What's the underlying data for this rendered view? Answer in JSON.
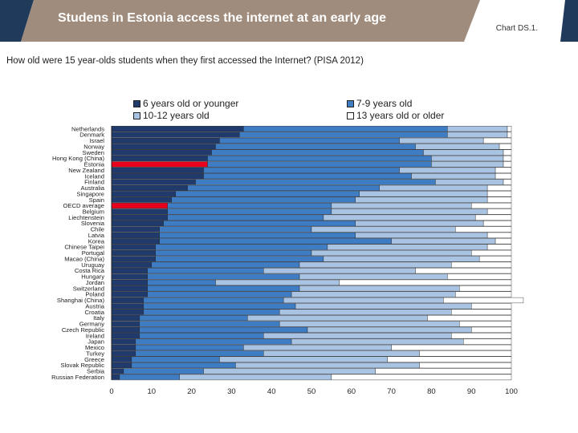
{
  "header": {
    "title": "Studens in Estonia access the internet at an early age",
    "chart_id": "Chart DS.1.",
    "banner_color": "#a08c7d",
    "banner_dark": "#1f3a5a"
  },
  "chart_data": {
    "type": "bar",
    "orientation": "horizontal",
    "stacked": true,
    "title": "How old were 15 year-olds students when they first accessed the Internet? (PISA 2012)",
    "xlim": [
      0,
      100
    ],
    "xticks": [
      "0",
      "10",
      "20",
      "30",
      "40",
      "50",
      "60",
      "70",
      "80",
      "90",
      "100"
    ],
    "legend_placement": "top",
    "highlight_categories": [
      "Estonia",
      "OECD average"
    ],
    "highlight_color": "#e8001c",
    "categories": [
      "Netherlands",
      "Denmark",
      "Israel",
      "Norway",
      "Sweden",
      "Hong Kong (China)",
      "Estonia",
      "New Zealand",
      "Iceland",
      "Finland",
      "Australia",
      "Singapore",
      "Spain",
      "OECD average",
      "Belgium",
      "Liechtenstein",
      "Slovenia",
      "Chile",
      "Latvia",
      "Korea",
      "Chinese Taipei",
      "Portugal",
      "Macao (China)",
      "Uruguay",
      "Costa Rica",
      "Hungary",
      "Jordan",
      "Switzerland",
      "Poland",
      "Shanghai (China)",
      "Austria",
      "Croatia",
      "Italy",
      "Germany",
      "Czech Republic",
      "Ireland",
      "Japan",
      "Mexico",
      "Turkey",
      "Greece",
      "Slovak Republic",
      "Serbia",
      "Russian Federation"
    ],
    "series": [
      {
        "name": "6 years old or younger",
        "color": "#1f3a6b",
        "values": [
          33,
          32,
          27,
          26,
          25,
          24,
          24,
          23,
          23,
          21,
          19,
          16,
          15,
          14,
          14,
          14,
          13,
          12,
          12,
          12,
          11,
          11,
          11,
          10,
          9,
          9,
          9,
          9,
          9,
          8,
          8,
          8,
          7,
          7,
          7,
          7,
          6,
          6,
          6,
          5,
          5,
          3,
          2
        ]
      },
      {
        "name": "7-9 years old",
        "color": "#3e7cc4",
        "values": [
          51,
          52,
          45,
          50,
          53,
          56,
          56,
          49,
          52,
          60,
          48,
          46,
          46,
          41,
          41,
          39,
          48,
          38,
          49,
          58,
          43,
          39,
          42,
          37,
          29,
          38,
          17,
          38,
          36,
          35,
          38,
          34,
          27,
          35,
          42,
          31,
          39,
          27,
          32,
          22,
          26,
          20,
          15
        ]
      },
      {
        "name": "10-12 years old",
        "color": "#a9c3e3",
        "values": [
          15,
          15,
          21,
          21,
          20,
          18,
          18,
          24,
          21,
          17,
          27,
          32,
          33,
          35,
          39,
          38,
          32,
          36,
          33,
          26,
          40,
          40,
          39,
          38,
          38,
          37,
          31,
          40,
          41,
          40,
          44,
          43,
          45,
          45,
          41,
          47,
          43,
          37,
          39,
          42,
          46,
          43,
          38
        ]
      },
      {
        "name": "13 years old or older",
        "color": "#ffffff",
        "values": [
          1,
          1,
          7,
          3,
          2,
          2,
          2,
          4,
          4,
          2,
          6,
          6,
          6,
          10,
          6,
          9,
          7,
          14,
          6,
          4,
          6,
          10,
          8,
          15,
          24,
          16,
          43,
          13,
          14,
          20,
          10,
          15,
          21,
          13,
          10,
          15,
          12,
          30,
          23,
          31,
          23,
          34,
          45
        ]
      }
    ]
  }
}
